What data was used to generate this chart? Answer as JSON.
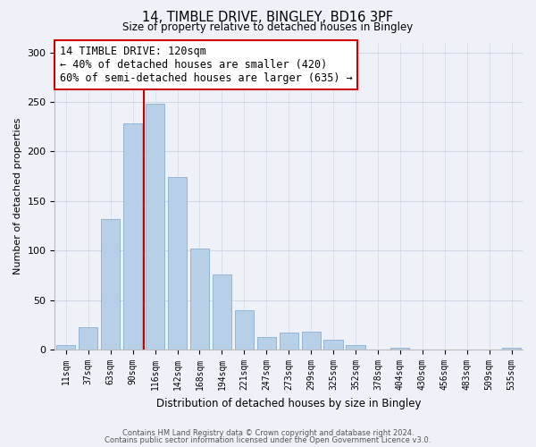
{
  "title": "14, TIMBLE DRIVE, BINGLEY, BD16 3PF",
  "subtitle": "Size of property relative to detached houses in Bingley",
  "xlabel": "Distribution of detached houses by size in Bingley",
  "ylabel": "Number of detached properties",
  "bar_labels": [
    "11sqm",
    "37sqm",
    "63sqm",
    "90sqm",
    "116sqm",
    "142sqm",
    "168sqm",
    "194sqm",
    "221sqm",
    "247sqm",
    "273sqm",
    "299sqm",
    "325sqm",
    "352sqm",
    "378sqm",
    "404sqm",
    "430sqm",
    "456sqm",
    "483sqm",
    "509sqm",
    "535sqm"
  ],
  "bar_values": [
    5,
    23,
    132,
    228,
    248,
    174,
    102,
    76,
    40,
    13,
    17,
    18,
    10,
    5,
    0,
    2,
    0,
    0,
    0,
    0,
    2
  ],
  "bar_color": "#b8cfe8",
  "vline_color": "#cc0000",
  "ylim": [
    0,
    310
  ],
  "yticks": [
    0,
    50,
    100,
    150,
    200,
    250,
    300
  ],
  "annotation_text": "14 TIMBLE DRIVE: 120sqm\n← 40% of detached houses are smaller (420)\n60% of semi-detached houses are larger (635) →",
  "footer1": "Contains HM Land Registry data © Crown copyright and database right 2024.",
  "footer2": "Contains public sector information licensed under the Open Government Licence v3.0.",
  "background_color": "#eef2f8",
  "grid_color": "#d0d8e8"
}
